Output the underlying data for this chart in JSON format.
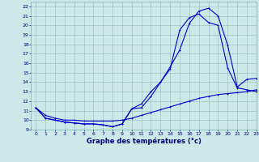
{
  "title": "Graphe des températures (°c)",
  "bg_color": "#cce8e8",
  "grid_color": "#9dc4c4",
  "line_color": "#0000cc",
  "xlim": [
    -0.5,
    23
  ],
  "ylim": [
    9,
    22.5
  ],
  "xticks": [
    0,
    1,
    2,
    3,
    4,
    5,
    6,
    7,
    8,
    9,
    10,
    11,
    12,
    13,
    14,
    15,
    16,
    17,
    18,
    19,
    20,
    21,
    22,
    23
  ],
  "yticks": [
    9,
    10,
    11,
    12,
    13,
    14,
    15,
    16,
    17,
    18,
    19,
    20,
    21,
    22
  ],
  "line1_x": [
    0,
    1,
    2,
    3,
    4,
    5,
    6,
    7,
    8,
    9,
    10,
    11,
    12,
    13,
    14,
    15,
    16,
    17,
    18,
    19,
    20,
    21,
    22,
    23
  ],
  "line1_y": [
    11.3,
    10.2,
    10.0,
    9.8,
    9.7,
    9.6,
    9.6,
    9.5,
    9.3,
    9.6,
    11.2,
    11.3,
    12.5,
    14.0,
    15.6,
    17.4,
    20.2,
    21.5,
    21.8,
    21.0,
    17.9,
    13.5,
    14.3,
    14.4
  ],
  "line2_x": [
    0,
    1,
    2,
    3,
    4,
    5,
    6,
    7,
    8,
    9,
    10,
    11,
    12,
    13,
    14,
    15,
    16,
    17,
    18,
    19,
    20,
    21,
    22,
    23
  ],
  "line2_y": [
    11.3,
    10.2,
    10.0,
    9.8,
    9.7,
    9.6,
    9.6,
    9.5,
    9.3,
    9.6,
    11.2,
    11.7,
    13.0,
    14.0,
    15.4,
    19.5,
    20.8,
    21.2,
    20.3,
    20.0,
    15.5,
    13.4,
    13.2,
    13.0
  ],
  "line3_x": [
    0,
    1,
    2,
    3,
    4,
    5,
    6,
    7,
    8,
    9,
    10,
    11,
    12,
    13,
    14,
    15,
    16,
    17,
    18,
    19,
    20,
    21,
    22,
    23
  ],
  "line3_y": [
    11.3,
    10.5,
    10.2,
    10.0,
    10.0,
    9.9,
    9.9,
    9.9,
    9.9,
    10.0,
    10.2,
    10.5,
    10.8,
    11.1,
    11.4,
    11.7,
    12.0,
    12.3,
    12.5,
    12.7,
    12.8,
    12.9,
    13.0,
    13.2
  ]
}
